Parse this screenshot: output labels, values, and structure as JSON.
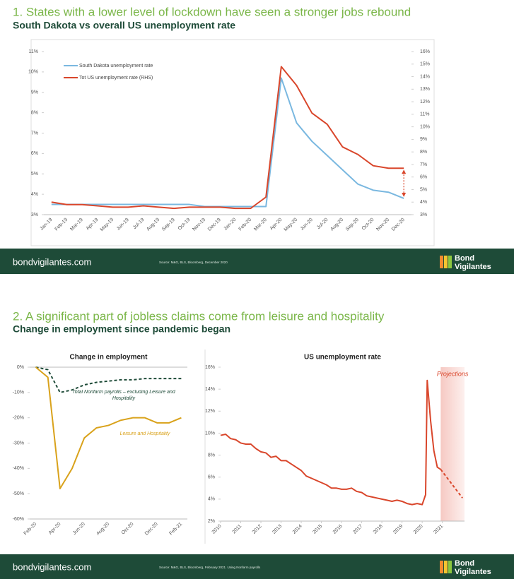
{
  "slides": [
    {
      "title": "1. States with a lower level of lockdown have seen a stronger jobs rebound",
      "subtitle": "South Dakota vs overall US unemployment rate",
      "footer": {
        "site": "bondvigilantes.com",
        "source": "Source: M&G, BLS, Bloomberg, December 2020",
        "logo": [
          "Bond",
          "Vigilantes"
        ]
      }
    },
    {
      "title": "2. A significant part of jobless claims come from leisure and hospitality",
      "subtitle": "Change in employment since pandemic began",
      "footer": {
        "site": "bondvigilantes.com",
        "source": "Source: M&G, BLS, Bloomberg, February 2021. Using Nonfarm payrolls",
        "logo": [
          "Bond",
          "Vigilantes"
        ]
      }
    }
  ],
  "chart_data": [
    {
      "type": "line",
      "categories": [
        "Jan-19",
        "Feb-19",
        "Mar-19",
        "Apr-19",
        "May-19",
        "Jun-19",
        "Jul-19",
        "Aug-19",
        "Sep-19",
        "Oct-19",
        "Nov-19",
        "Dec-19",
        "Jan-20",
        "Feb-20",
        "Mar-20",
        "Apr-20",
        "May-20",
        "Jun-20",
        "Jul-20",
        "Aug-20",
        "Sep-20",
        "Oct-20",
        "Nov-20",
        "Dec-20"
      ],
      "series": [
        {
          "name": "South Dakota unemployment rate",
          "color": "#7ab8e0",
          "values": [
            3.5,
            3.5,
            3.5,
            3.5,
            3.5,
            3.5,
            3.5,
            3.5,
            3.5,
            3.5,
            3.4,
            3.4,
            3.4,
            3.4,
            3.4,
            9.7,
            7.5,
            6.6,
            5.9,
            5.2,
            4.5,
            4.2,
            4.1,
            3.8
          ]
        },
        {
          "name": "Tot US unemployment rate (RHS)",
          "color": "#d9462b",
          "axis": "y2",
          "values": [
            4.0,
            3.8,
            3.8,
            3.7,
            3.6,
            3.6,
            3.7,
            3.6,
            3.5,
            3.6,
            3.6,
            3.6,
            3.5,
            3.5,
            4.4,
            14.8,
            13.3,
            11.1,
            10.2,
            8.4,
            7.8,
            6.9,
            6.7,
            6.7
          ]
        }
      ],
      "ylim": [
        3,
        11
      ],
      "yticks": [
        {
          "value": 3,
          "label": "3%"
        },
        {
          "value": 4,
          "label": "4%"
        },
        {
          "value": 5,
          "label": "5%"
        },
        {
          "value": 6,
          "label": "6%"
        },
        {
          "value": 7,
          "label": "7%"
        },
        {
          "value": 8,
          "label": "8%"
        },
        {
          "value": 9,
          "label": "9%"
        },
        {
          "value": 10,
          "label": "10%"
        },
        {
          "value": 11,
          "label": "11%"
        }
      ],
      "y2lim": [
        3,
        16
      ],
      "y2ticks": [
        {
          "value": 3,
          "label": "3%"
        },
        {
          "value": 4,
          "label": "4%"
        },
        {
          "value": 5,
          "label": "5%"
        },
        {
          "value": 6,
          "label": "6%"
        },
        {
          "value": 7,
          "label": "7%"
        },
        {
          "value": 8,
          "label": "8%"
        },
        {
          "value": 9,
          "label": "9%"
        },
        {
          "value": 10,
          "label": "10%"
        },
        {
          "value": 11,
          "label": "11%"
        },
        {
          "value": 12,
          "label": "12%"
        },
        {
          "value": 13,
          "label": "13%"
        },
        {
          "value": 14,
          "label": "14%"
        },
        {
          "value": 15,
          "label": "15%"
        },
        {
          "value": 16,
          "label": "16%"
        }
      ],
      "legend": "upper left",
      "grid": false
    },
    {
      "type": "line",
      "title": "Change in employment",
      "categories": [
        "Feb-20",
        null,
        "Apr-20",
        null,
        "Jun-20",
        null,
        "Aug-20",
        null,
        "Oct-20",
        null,
        "Dec-20",
        null,
        "Feb-21"
      ],
      "series": [
        {
          "name": "Total Nonfarm payrolls – excluding Leisure and Hospitality",
          "color": "#1e4b38",
          "dash": true,
          "values": [
            0,
            -1,
            -10,
            -9,
            -7,
            -6,
            -5.5,
            -5,
            -5,
            -4.5,
            -4.5,
            -4.5,
            -4.5
          ]
        },
        {
          "name": "Leisure and Hospitality",
          "color": "#d9a21b",
          "values": [
            0,
            -4,
            -48,
            -40,
            -28,
            -24,
            -23,
            -21,
            -20,
            -20,
            -22,
            -22,
            -20
          ]
        }
      ],
      "ylim": [
        -60,
        0
      ],
      "yticks": [
        {
          "value": -60,
          "label": "-60%"
        },
        {
          "value": -50,
          "label": "-50%"
        },
        {
          "value": -40,
          "label": "-40%"
        },
        {
          "value": -30,
          "label": "-30%"
        },
        {
          "value": -20,
          "label": "-20%"
        },
        {
          "value": -10,
          "label": "-10%"
        },
        {
          "value": 0,
          "label": "0%"
        }
      ],
      "legend": "inline",
      "grid": false
    },
    {
      "type": "line",
      "title": "US unemployment rate",
      "series": [
        {
          "color": "#d9462b",
          "x": [
            2010,
            2010.25,
            2010.5,
            2010.75,
            2011,
            2011.25,
            2011.5,
            2011.75,
            2012,
            2012.25,
            2012.5,
            2012.75,
            2013,
            2013.25,
            2013.5,
            2013.75,
            2014,
            2014.25,
            2014.5,
            2014.75,
            2015,
            2015.25,
            2015.5,
            2015.75,
            2016,
            2016.25,
            2016.5,
            2016.75,
            2017,
            2017.25,
            2017.5,
            2017.75,
            2018,
            2018.25,
            2018.5,
            2018.75,
            2019,
            2019.25,
            2019.5,
            2019.75,
            2020,
            2020.17,
            2020.25,
            2020.42,
            2020.58,
            2020.75,
            2020.92
          ],
          "values": [
            9.8,
            9.9,
            9.5,
            9.4,
            9.1,
            9.0,
            9.0,
            8.6,
            8.3,
            8.2,
            7.8,
            7.9,
            7.5,
            7.5,
            7.2,
            6.9,
            6.6,
            6.1,
            5.9,
            5.7,
            5.5,
            5.3,
            5.0,
            5.0,
            4.9,
            4.9,
            5.0,
            4.7,
            4.6,
            4.3,
            4.2,
            4.1,
            4.0,
            3.9,
            3.8,
            3.9,
            3.8,
            3.6,
            3.5,
            3.6,
            3.5,
            4.4,
            14.8,
            11.1,
            8.4,
            6.9,
            6.7
          ]
        },
        {
          "color": "#d9462b",
          "dash": true,
          "x": [
            2020.92,
            2022.0
          ],
          "values": [
            6.7,
            4.1
          ]
        }
      ],
      "shade": {
        "from": 2020.92,
        "label": "Projections"
      },
      "xlim": [
        2010,
        2022.1
      ],
      "xticks": [
        2010,
        2011,
        2012,
        2013,
        2014,
        2015,
        2016,
        2017,
        2018,
        2019,
        2020,
        2021
      ],
      "ylim": [
        2,
        16
      ],
      "yticks": [
        {
          "value": 2,
          "label": "2%"
        },
        {
          "value": 4,
          "label": "4%"
        },
        {
          "value": 6,
          "label": "6%"
        },
        {
          "value": 8,
          "label": "8%"
        },
        {
          "value": 10,
          "label": "10%"
        },
        {
          "value": 12,
          "label": "12%"
        },
        {
          "value": 14,
          "label": "14%"
        },
        {
          "value": 16,
          "label": "16%"
        }
      ],
      "grid": false
    }
  ]
}
